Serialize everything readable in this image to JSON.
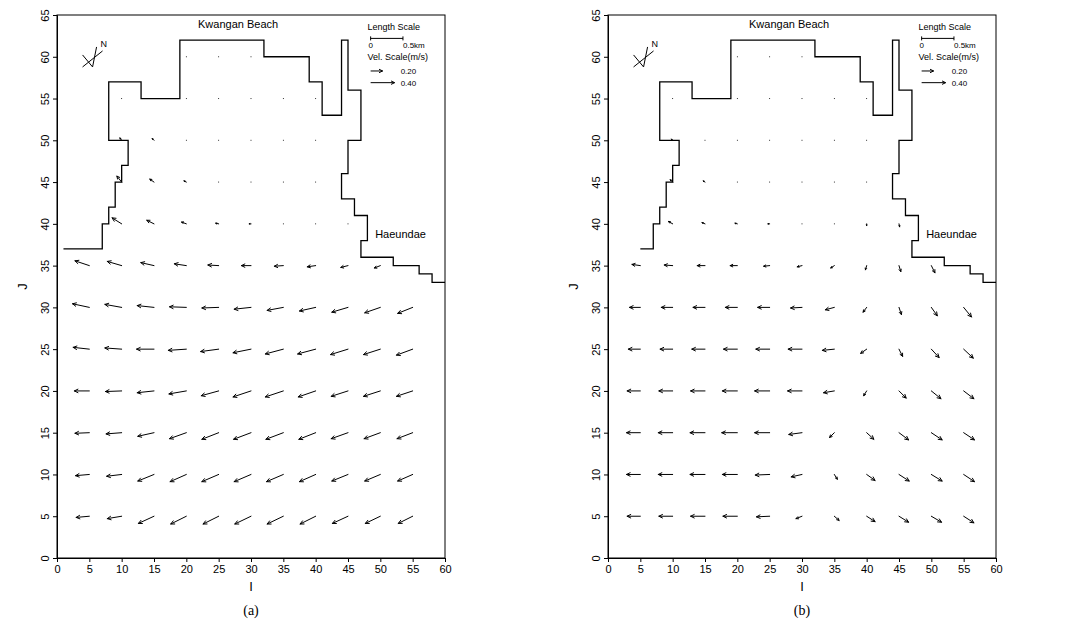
{
  "chart_data": [
    {
      "type": "vector_field",
      "panel_label": "(a)",
      "title": "Kwangan Beach",
      "annotations": [
        "Haeundae"
      ],
      "xlabel": "I",
      "ylabel": "J",
      "xlim": [
        0,
        60
      ],
      "ylim": [
        0,
        65
      ],
      "xticks": [
        0,
        5,
        10,
        15,
        20,
        25,
        30,
        35,
        40,
        45,
        50,
        55,
        60
      ],
      "yticks": [
        0,
        5,
        10,
        15,
        20,
        25,
        30,
        35,
        40,
        45,
        50,
        55,
        60,
        65
      ],
      "north_label": "N",
      "length_scale": {
        "title": "Length Scale",
        "values": [
          0,
          0.5
        ],
        "value_labels": [
          "0",
          "0.5km"
        ],
        "grid_size_km": 0.1
      },
      "velocity_scale": {
        "title": "Vel. Scale(m/s)",
        "values": [
          0.2,
          0.4
        ],
        "value_labels": [
          "0.20",
          "0.40"
        ]
      },
      "coastline": [
        [
          1,
          37
        ],
        [
          7,
          37
        ],
        [
          7,
          40
        ],
        [
          8,
          40
        ],
        [
          8,
          42
        ],
        [
          9,
          42
        ],
        [
          9,
          45
        ],
        [
          10,
          45
        ],
        [
          10,
          47
        ],
        [
          11,
          47
        ],
        [
          11,
          50
        ],
        [
          8,
          50
        ],
        [
          8,
          57
        ],
        [
          13,
          57
        ],
        [
          13,
          55
        ],
        [
          19,
          55
        ],
        [
          19,
          62
        ],
        [
          32,
          62
        ],
        [
          32,
          60
        ],
        [
          39,
          60
        ],
        [
          39,
          57
        ],
        [
          41,
          57
        ],
        [
          41,
          53
        ],
        [
          44,
          53
        ],
        [
          44,
          62
        ],
        [
          45,
          62
        ],
        [
          45,
          56
        ],
        [
          47,
          56
        ],
        [
          47,
          50
        ],
        [
          45,
          50
        ],
        [
          45,
          46
        ],
        [
          44,
          46
        ],
        [
          44,
          43
        ],
        [
          46,
          43
        ],
        [
          46,
          41
        ],
        [
          48,
          41
        ],
        [
          48,
          38
        ],
        [
          47,
          38
        ],
        [
          47,
          36
        ],
        [
          52,
          36
        ],
        [
          52,
          35
        ],
        [
          56,
          35
        ],
        [
          56,
          34
        ],
        [
          58,
          34
        ],
        [
          58,
          33
        ],
        [
          60,
          33
        ]
      ],
      "x": [
        5,
        10,
        15,
        20,
        25,
        30,
        35,
        40,
        45,
        50,
        55
      ],
      "y": [
        5,
        10,
        15,
        20,
        25,
        30,
        35,
        40,
        45,
        50,
        55,
        60
      ],
      "u": [
        [
          -0.22,
          -0.24,
          -0.26,
          -0.26,
          -0.26,
          -0.27,
          -0.27,
          -0.26,
          -0.26,
          -0.25,
          -0.24
        ],
        [
          -0.23,
          -0.25,
          -0.27,
          -0.27,
          -0.28,
          -0.28,
          -0.28,
          -0.27,
          -0.27,
          -0.26,
          -0.25
        ],
        [
          -0.24,
          -0.26,
          -0.27,
          -0.28,
          -0.28,
          -0.29,
          -0.29,
          -0.28,
          -0.28,
          -0.27,
          -0.26
        ],
        [
          -0.25,
          -0.27,
          -0.28,
          -0.29,
          -0.29,
          -0.3,
          -0.3,
          -0.29,
          -0.28,
          -0.28,
          -0.27
        ],
        [
          -0.27,
          -0.28,
          -0.29,
          -0.3,
          -0.3,
          -0.3,
          -0.3,
          -0.3,
          -0.29,
          -0.28,
          -0.27
        ],
        [
          -0.28,
          -0.28,
          -0.28,
          -0.28,
          -0.28,
          -0.28,
          -0.27,
          -0.27,
          -0.27,
          -0.26,
          -0.25
        ],
        [
          -0.24,
          -0.24,
          -0.22,
          -0.2,
          -0.18,
          -0.16,
          -0.15,
          -0.14,
          -0.12,
          -0.1,
          null
        ],
        [
          null,
          -0.16,
          -0.12,
          -0.08,
          -0.05,
          -0.03,
          -0.02,
          -0.01,
          0,
          null,
          null
        ],
        [
          null,
          -0.08,
          -0.07,
          -0.04,
          -0.02,
          -0.01,
          -0.01,
          0,
          null,
          null,
          null
        ],
        [
          null,
          -0.03,
          -0.03,
          -0.02,
          -0.01,
          -0.01,
          0,
          0,
          null,
          null,
          null
        ],
        [
          null,
          -0.01,
          null,
          -0.01,
          0,
          0,
          0,
          0,
          null,
          null,
          null
        ],
        [
          null,
          null,
          null,
          0,
          0,
          0,
          null,
          null,
          null,
          null,
          null
        ]
      ],
      "v": [
        [
          -0.02,
          -0.04,
          -0.12,
          -0.13,
          -0.13,
          -0.13,
          -0.13,
          -0.13,
          -0.12,
          -0.12,
          -0.12
        ],
        [
          -0.02,
          -0.03,
          -0.11,
          -0.12,
          -0.12,
          -0.12,
          -0.12,
          -0.12,
          -0.11,
          -0.11,
          -0.11
        ],
        [
          -0.01,
          -0.02,
          -0.06,
          -0.1,
          -0.11,
          -0.11,
          -0.11,
          -0.11,
          -0.1,
          -0.1,
          -0.1
        ],
        [
          0,
          -0.01,
          -0.03,
          -0.05,
          -0.08,
          -0.1,
          -0.1,
          -0.1,
          -0.09,
          -0.09,
          -0.09
        ],
        [
          0.03,
          0.02,
          0,
          -0.02,
          -0.04,
          -0.06,
          -0.08,
          -0.08,
          -0.09,
          -0.09,
          -0.1
        ],
        [
          0.06,
          0.05,
          0.03,
          0.01,
          -0.01,
          -0.03,
          -0.05,
          -0.06,
          -0.08,
          -0.09,
          -0.1
        ],
        [
          0.08,
          0.07,
          0.05,
          0.03,
          0.01,
          0,
          -0.01,
          -0.02,
          -0.03,
          -0.04,
          null
        ],
        [
          null,
          0.1,
          0.06,
          0.03,
          0.01,
          0,
          0,
          0,
          0.01,
          null,
          null
        ],
        [
          null,
          0.1,
          0.05,
          0.02,
          0.01,
          0,
          0,
          0,
          null,
          null,
          null
        ],
        [
          null,
          0.04,
          0.03,
          0.01,
          0,
          0,
          0,
          0,
          null,
          null,
          null
        ],
        [
          null,
          0.02,
          null,
          0.01,
          0.01,
          0,
          0,
          0,
          null,
          null,
          null
        ],
        [
          null,
          null,
          null,
          0.01,
          0,
          0,
          null,
          null,
          null,
          null,
          null
        ]
      ]
    },
    {
      "type": "vector_field",
      "panel_label": "(b)",
      "title": "Kwangan Beach",
      "annotations": [
        "Haeundae"
      ],
      "xlabel": "I",
      "ylabel": "J",
      "xlim": [
        0,
        60
      ],
      "ylim": [
        0,
        65
      ],
      "xticks": [
        0,
        5,
        10,
        15,
        20,
        25,
        30,
        35,
        40,
        45,
        50,
        55,
        60
      ],
      "yticks": [
        0,
        5,
        10,
        15,
        20,
        25,
        30,
        35,
        40,
        45,
        50,
        55,
        60,
        65
      ],
      "north_label": "N",
      "length_scale": {
        "title": "Length Scale",
        "values": [
          0,
          0.5
        ],
        "value_labels": [
          "0",
          "0.5km"
        ],
        "grid_size_km": 0.1
      },
      "velocity_scale": {
        "title": "Vel. Scale(m/s)",
        "values": [
          0.2,
          0.4
        ],
        "value_labels": [
          "0.20",
          "0.40"
        ]
      },
      "coastline": [
        [
          5,
          37
        ],
        [
          7,
          37
        ],
        [
          7,
          40
        ],
        [
          8,
          40
        ],
        [
          8,
          42
        ],
        [
          9,
          42
        ],
        [
          9,
          45
        ],
        [
          10,
          45
        ],
        [
          10,
          47
        ],
        [
          11,
          47
        ],
        [
          11,
          50
        ],
        [
          8,
          50
        ],
        [
          8,
          57
        ],
        [
          13,
          57
        ],
        [
          13,
          55
        ],
        [
          19,
          55
        ],
        [
          19,
          62
        ],
        [
          32,
          62
        ],
        [
          32,
          60
        ],
        [
          39,
          60
        ],
        [
          39,
          57
        ],
        [
          41,
          57
        ],
        [
          41,
          53
        ],
        [
          44,
          53
        ],
        [
          44,
          62
        ],
        [
          45,
          62
        ],
        [
          45,
          56
        ],
        [
          47,
          56
        ],
        [
          47,
          50
        ],
        [
          45,
          50
        ],
        [
          45,
          46
        ],
        [
          44,
          46
        ],
        [
          44,
          43
        ],
        [
          46,
          43
        ],
        [
          46,
          41
        ],
        [
          48,
          41
        ],
        [
          48,
          38
        ],
        [
          47,
          38
        ],
        [
          47,
          36
        ],
        [
          52,
          36
        ],
        [
          52,
          35
        ],
        [
          56,
          35
        ],
        [
          56,
          34
        ],
        [
          58,
          34
        ],
        [
          58,
          33
        ],
        [
          60,
          33
        ]
      ],
      "x": [
        5,
        10,
        15,
        20,
        25,
        30,
        35,
        40,
        45,
        50,
        55
      ],
      "y": [
        5,
        10,
        15,
        20,
        25,
        30,
        35,
        40,
        45,
        50,
        55,
        60
      ],
      "u": [
        [
          -0.22,
          -0.23,
          -0.24,
          -0.24,
          -0.22,
          -0.1,
          0.08,
          0.14,
          0.16,
          0.17,
          0.17
        ],
        [
          -0.23,
          -0.24,
          -0.25,
          -0.25,
          -0.24,
          -0.18,
          0.05,
          0.14,
          0.17,
          0.18,
          0.18
        ],
        [
          -0.23,
          -0.24,
          -0.25,
          -0.26,
          -0.25,
          -0.22,
          -0.08,
          0.12,
          0.16,
          0.18,
          0.18
        ],
        [
          -0.22,
          -0.23,
          -0.24,
          -0.25,
          -0.25,
          -0.24,
          -0.18,
          -0.05,
          0.12,
          0.16,
          0.17
        ],
        [
          -0.2,
          -0.21,
          -0.22,
          -0.23,
          -0.23,
          -0.23,
          -0.2,
          -0.1,
          0.06,
          0.13,
          0.16
        ],
        [
          -0.18,
          -0.19,
          -0.2,
          -0.2,
          -0.2,
          -0.19,
          -0.15,
          -0.06,
          0.04,
          0.1,
          0.13
        ],
        [
          -0.14,
          -0.14,
          -0.13,
          -0.12,
          -0.1,
          -0.08,
          -0.06,
          -0.02,
          0.03,
          0.06,
          null
        ],
        [
          null,
          -0.07,
          -0.05,
          -0.04,
          -0.03,
          -0.02,
          -0.01,
          0,
          0.01,
          null,
          null
        ],
        [
          null,
          -0.04,
          -0.03,
          -0.02,
          -0.01,
          0,
          0,
          0,
          null,
          null,
          null
        ],
        [
          null,
          -0.02,
          -0.01,
          -0.01,
          0,
          0,
          0,
          0,
          null,
          null,
          null
        ],
        [
          null,
          -0.01,
          null,
          0,
          0,
          0,
          0,
          0,
          null,
          null,
          null
        ],
        [
          null,
          null,
          null,
          0,
          0,
          0,
          null,
          null,
          null,
          null,
          null
        ]
      ],
      "v": [
        [
          0,
          0,
          0,
          0,
          -0.01,
          -0.04,
          -0.07,
          -0.09,
          -0.1,
          -0.1,
          -0.11
        ],
        [
          0,
          0,
          0,
          0,
          -0.01,
          -0.04,
          -0.08,
          -0.1,
          -0.11,
          -0.11,
          -0.12
        ],
        [
          0,
          0,
          0,
          0,
          0,
          -0.03,
          -0.08,
          -0.11,
          -0.12,
          -0.12,
          -0.12
        ],
        [
          0,
          0,
          0,
          0,
          0,
          0,
          -0.03,
          -0.08,
          -0.12,
          -0.13,
          -0.13
        ],
        [
          0,
          0,
          0,
          0,
          0,
          0,
          -0.02,
          -0.07,
          -0.12,
          -0.14,
          -0.15
        ],
        [
          0,
          0,
          0,
          0,
          0,
          -0.01,
          -0.04,
          -0.08,
          -0.12,
          -0.14,
          -0.16
        ],
        [
          0.02,
          0.01,
          0,
          0,
          -0.01,
          -0.02,
          -0.04,
          -0.07,
          -0.1,
          -0.12,
          null
        ],
        [
          null,
          0.04,
          0.02,
          0.01,
          0,
          0,
          -0.01,
          -0.03,
          -0.05,
          null,
          null
        ],
        [
          null,
          0.04,
          0.02,
          0.01,
          0,
          0,
          0,
          -0.01,
          null,
          null,
          null
        ],
        [
          null,
          0.02,
          0.01,
          0,
          0,
          0,
          0,
          0,
          null,
          null,
          null
        ],
        [
          null,
          0.01,
          null,
          0,
          0,
          0,
          0,
          0,
          null,
          null,
          null
        ],
        [
          null,
          null,
          null,
          0,
          0,
          0,
          null,
          null,
          null,
          null,
          null
        ]
      ]
    }
  ]
}
